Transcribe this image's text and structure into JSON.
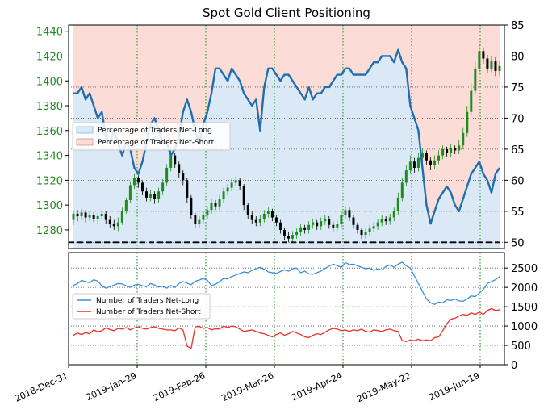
{
  "chart_data": [
    {
      "type": "line",
      "title": "Spot Gold Client Positioning",
      "x_ticks": [
        "2018-Dec-31",
        "2019-Jan-29",
        "2019-Feb-26",
        "2019-Mar-26",
        "2019-Apr-24",
        "2019-May-22",
        "2019-Jun-19"
      ],
      "y_left_ticks": [
        1280,
        1300,
        1320,
        1340,
        1360,
        1380,
        1400,
        1420,
        1440
      ],
      "y_right_ticks": [
        50,
        55,
        60,
        65,
        70,
        75,
        80,
        85
      ],
      "ylim_left": [
        1265,
        1445
      ],
      "ylim_right": [
        49,
        85
      ],
      "reference_line": 50,
      "grid": true,
      "legend_placement": "center-left",
      "legend": [
        "Percentage of Traders Net-Long",
        "Percentage of Traders Net-Short"
      ],
      "colors": {
        "net_long": "#1f6fb0",
        "long_fill": "#dbe9f7",
        "short_fill": "#fbdcd6",
        "candle_up": "#1f8b1f",
        "candle_down": "#000000",
        "grid_x": "#2ca02c",
        "tick_left": "#1f8b1f"
      },
      "series": [
        {
          "name": "Percentage of Traders Net-Long",
          "values": [
            74,
            74,
            75,
            73,
            74,
            72,
            70,
            71,
            67,
            66,
            68,
            66,
            64,
            66,
            65,
            62,
            61,
            63,
            66,
            69,
            70,
            68,
            66,
            66,
            64,
            65,
            67,
            71,
            73,
            71,
            68,
            66,
            69,
            71,
            74,
            78,
            78,
            77,
            76,
            78,
            77,
            76,
            74,
            73,
            72,
            73,
            68,
            75,
            78,
            78,
            77,
            76,
            77,
            77,
            76,
            75,
            74,
            73,
            75,
            73,
            74,
            74,
            75,
            75,
            76,
            77,
            77,
            78,
            78,
            77,
            77,
            77,
            77,
            78,
            79,
            79,
            80,
            80,
            80,
            79,
            81,
            79,
            78,
            72,
            70,
            68,
            62,
            56,
            53,
            55,
            57,
            58,
            59,
            58,
            56,
            55,
            57,
            59,
            61,
            62,
            63,
            61,
            60,
            58,
            61,
            62
          ]
        }
      ],
      "candles": [
        {
          "o": 1288,
          "c": 1293,
          "h": 1295,
          "l": 1284
        },
        {
          "o": 1293,
          "c": 1291,
          "h": 1296,
          "l": 1287
        },
        {
          "o": 1291,
          "c": 1294,
          "h": 1297,
          "l": 1288
        },
        {
          "o": 1294,
          "c": 1290,
          "h": 1296,
          "l": 1286
        },
        {
          "o": 1290,
          "c": 1292,
          "h": 1295,
          "l": 1287
        },
        {
          "o": 1292,
          "c": 1289,
          "h": 1294,
          "l": 1286
        },
        {
          "o": 1289,
          "c": 1291,
          "h": 1294,
          "l": 1285
        },
        {
          "o": 1291,
          "c": 1293,
          "h": 1296,
          "l": 1288
        },
        {
          "o": 1293,
          "c": 1288,
          "h": 1295,
          "l": 1285
        },
        {
          "o": 1288,
          "c": 1285,
          "h": 1291,
          "l": 1282
        },
        {
          "o": 1285,
          "c": 1283,
          "h": 1288,
          "l": 1280
        },
        {
          "o": 1283,
          "c": 1286,
          "h": 1290,
          "l": 1279
        },
        {
          "o": 1286,
          "c": 1295,
          "h": 1298,
          "l": 1284
        },
        {
          "o": 1295,
          "c": 1304,
          "h": 1306,
          "l": 1293
        },
        {
          "o": 1304,
          "c": 1316,
          "h": 1319,
          "l": 1302
        },
        {
          "o": 1316,
          "c": 1322,
          "h": 1325,
          "l": 1313
        },
        {
          "o": 1322,
          "c": 1318,
          "h": 1324,
          "l": 1314
        },
        {
          "o": 1318,
          "c": 1311,
          "h": 1320,
          "l": 1308
        },
        {
          "o": 1311,
          "c": 1306,
          "h": 1314,
          "l": 1303
        },
        {
          "o": 1306,
          "c": 1309,
          "h": 1312,
          "l": 1303
        },
        {
          "o": 1309,
          "c": 1305,
          "h": 1311,
          "l": 1301
        },
        {
          "o": 1305,
          "c": 1311,
          "h": 1314,
          "l": 1302
        },
        {
          "o": 1311,
          "c": 1318,
          "h": 1321,
          "l": 1308
        },
        {
          "o": 1318,
          "c": 1330,
          "h": 1333,
          "l": 1315
        },
        {
          "o": 1330,
          "c": 1340,
          "h": 1346,
          "l": 1327
        },
        {
          "o": 1340,
          "c": 1333,
          "h": 1342,
          "l": 1330
        },
        {
          "o": 1333,
          "c": 1326,
          "h": 1335,
          "l": 1322
        },
        {
          "o": 1326,
          "c": 1320,
          "h": 1328,
          "l": 1316
        },
        {
          "o": 1320,
          "c": 1306,
          "h": 1322,
          "l": 1302
        },
        {
          "o": 1306,
          "c": 1292,
          "h": 1308,
          "l": 1289
        },
        {
          "o": 1292,
          "c": 1285,
          "h": 1294,
          "l": 1282
        },
        {
          "o": 1285,
          "c": 1288,
          "h": 1291,
          "l": 1282
        },
        {
          "o": 1288,
          "c": 1292,
          "h": 1295,
          "l": 1285
        },
        {
          "o": 1292,
          "c": 1296,
          "h": 1299,
          "l": 1289
        },
        {
          "o": 1296,
          "c": 1302,
          "h": 1305,
          "l": 1293
        },
        {
          "o": 1302,
          "c": 1299,
          "h": 1304,
          "l": 1296
        },
        {
          "o": 1299,
          "c": 1305,
          "h": 1308,
          "l": 1296
        },
        {
          "o": 1305,
          "c": 1311,
          "h": 1314,
          "l": 1302
        },
        {
          "o": 1311,
          "c": 1314,
          "h": 1317,
          "l": 1308
        },
        {
          "o": 1314,
          "c": 1318,
          "h": 1321,
          "l": 1311
        },
        {
          "o": 1318,
          "c": 1320,
          "h": 1323,
          "l": 1315
        },
        {
          "o": 1320,
          "c": 1315,
          "h": 1322,
          "l": 1312
        },
        {
          "o": 1315,
          "c": 1300,
          "h": 1317,
          "l": 1296
        },
        {
          "o": 1300,
          "c": 1292,
          "h": 1302,
          "l": 1289
        },
        {
          "o": 1292,
          "c": 1288,
          "h": 1295,
          "l": 1285
        },
        {
          "o": 1288,
          "c": 1286,
          "h": 1291,
          "l": 1283
        },
        {
          "o": 1286,
          "c": 1289,
          "h": 1292,
          "l": 1283
        },
        {
          "o": 1289,
          "c": 1293,
          "h": 1296,
          "l": 1286
        },
        {
          "o": 1293,
          "c": 1295,
          "h": 1298,
          "l": 1290
        },
        {
          "o": 1295,
          "c": 1290,
          "h": 1297,
          "l": 1287
        },
        {
          "o": 1290,
          "c": 1286,
          "h": 1292,
          "l": 1283
        },
        {
          "o": 1286,
          "c": 1280,
          "h": 1288,
          "l": 1277
        },
        {
          "o": 1280,
          "c": 1275,
          "h": 1282,
          "l": 1272
        },
        {
          "o": 1275,
          "c": 1273,
          "h": 1278,
          "l": 1270
        },
        {
          "o": 1273,
          "c": 1276,
          "h": 1279,
          "l": 1270
        },
        {
          "o": 1276,
          "c": 1278,
          "h": 1281,
          "l": 1273
        },
        {
          "o": 1278,
          "c": 1282,
          "h": 1285,
          "l": 1275
        },
        {
          "o": 1282,
          "c": 1280,
          "h": 1284,
          "l": 1277
        },
        {
          "o": 1280,
          "c": 1284,
          "h": 1287,
          "l": 1277
        },
        {
          "o": 1284,
          "c": 1286,
          "h": 1289,
          "l": 1281
        },
        {
          "o": 1286,
          "c": 1283,
          "h": 1288,
          "l": 1280
        },
        {
          "o": 1283,
          "c": 1287,
          "h": 1290,
          "l": 1280
        },
        {
          "o": 1287,
          "c": 1289,
          "h": 1292,
          "l": 1284
        },
        {
          "o": 1289,
          "c": 1284,
          "h": 1291,
          "l": 1281
        },
        {
          "o": 1284,
          "c": 1282,
          "h": 1287,
          "l": 1279
        },
        {
          "o": 1282,
          "c": 1285,
          "h": 1288,
          "l": 1279
        },
        {
          "o": 1285,
          "c": 1292,
          "h": 1295,
          "l": 1282
        },
        {
          "o": 1292,
          "c": 1296,
          "h": 1299,
          "l": 1289
        },
        {
          "o": 1296,
          "c": 1290,
          "h": 1298,
          "l": 1287
        },
        {
          "o": 1290,
          "c": 1284,
          "h": 1292,
          "l": 1281
        },
        {
          "o": 1284,
          "c": 1280,
          "h": 1286,
          "l": 1277
        },
        {
          "o": 1280,
          "c": 1276,
          "h": 1282,
          "l": 1273
        },
        {
          "o": 1276,
          "c": 1278,
          "h": 1281,
          "l": 1273
        },
        {
          "o": 1278,
          "c": 1281,
          "h": 1284,
          "l": 1275
        },
        {
          "o": 1281,
          "c": 1283,
          "h": 1286,
          "l": 1278
        },
        {
          "o": 1283,
          "c": 1286,
          "h": 1289,
          "l": 1280
        },
        {
          "o": 1286,
          "c": 1289,
          "h": 1292,
          "l": 1283
        },
        {
          "o": 1289,
          "c": 1287,
          "h": 1291,
          "l": 1284
        },
        {
          "o": 1287,
          "c": 1290,
          "h": 1293,
          "l": 1284
        },
        {
          "o": 1290,
          "c": 1295,
          "h": 1298,
          "l": 1287
        },
        {
          "o": 1295,
          "c": 1306,
          "h": 1310,
          "l": 1292
        },
        {
          "o": 1306,
          "c": 1318,
          "h": 1322,
          "l": 1303
        },
        {
          "o": 1318,
          "c": 1328,
          "h": 1332,
          "l": 1315
        },
        {
          "o": 1328,
          "c": 1335,
          "h": 1340,
          "l": 1325
        },
        {
          "o": 1335,
          "c": 1330,
          "h": 1338,
          "l": 1326
        },
        {
          "o": 1330,
          "c": 1338,
          "h": 1342,
          "l": 1327
        },
        {
          "o": 1338,
          "c": 1342,
          "h": 1346,
          "l": 1334
        },
        {
          "o": 1342,
          "c": 1336,
          "h": 1344,
          "l": 1332
        },
        {
          "o": 1336,
          "c": 1332,
          "h": 1339,
          "l": 1328
        },
        {
          "o": 1332,
          "c": 1336,
          "h": 1340,
          "l": 1329
        },
        {
          "o": 1336,
          "c": 1340,
          "h": 1344,
          "l": 1333
        },
        {
          "o": 1340,
          "c": 1345,
          "h": 1348,
          "l": 1337
        },
        {
          "o": 1345,
          "c": 1342,
          "h": 1347,
          "l": 1339
        },
        {
          "o": 1342,
          "c": 1346,
          "h": 1349,
          "l": 1339
        },
        {
          "o": 1346,
          "c": 1344,
          "h": 1348,
          "l": 1341
        },
        {
          "o": 1344,
          "c": 1348,
          "h": 1352,
          "l": 1341
        },
        {
          "o": 1348,
          "c": 1358,
          "h": 1362,
          "l": 1345
        },
        {
          "o": 1358,
          "c": 1375,
          "h": 1380,
          "l": 1355
        },
        {
          "o": 1375,
          "c": 1392,
          "h": 1398,
          "l": 1372
        },
        {
          "o": 1392,
          "c": 1410,
          "h": 1416,
          "l": 1389
        },
        {
          "o": 1410,
          "c": 1424,
          "h": 1430,
          "l": 1407
        },
        {
          "o": 1424,
          "c": 1418,
          "h": 1427,
          "l": 1414
        },
        {
          "o": 1418,
          "c": 1410,
          "h": 1421,
          "l": 1406
        },
        {
          "o": 1410,
          "c": 1416,
          "h": 1420,
          "l": 1407
        },
        {
          "o": 1416,
          "c": 1408,
          "h": 1419,
          "l": 1404
        },
        {
          "o": 1408,
          "c": 1412,
          "h": 1416,
          "l": 1404
        }
      ]
    },
    {
      "type": "line",
      "x_ticks": [
        "2018-Dec-31",
        "2019-Jan-29",
        "2019-Feb-26",
        "2019-Mar-26",
        "2019-Apr-24",
        "2019-May-22",
        "2019-Jun-19"
      ],
      "y_right_ticks": [
        0,
        500,
        1000,
        1500,
        2000,
        2500
      ],
      "ylim": [
        0,
        2900
      ],
      "grid": true,
      "legend_placement": "center-left",
      "series": [
        {
          "name": "Number of Traders Net-Long",
          "color": "#3b8fd9",
          "values": [
            2050,
            2100,
            2180,
            2150,
            2120,
            2200,
            2160,
            2040,
            1980,
            2020,
            2060,
            2100,
            2090,
            2040,
            2000,
            2060,
            2080,
            2040,
            2020,
            2100,
            2060,
            2010,
            2030,
            1980,
            2050,
            2000,
            2100,
            2150,
            2110,
            2070,
            2160,
            2190,
            2230,
            2180,
            2050,
            2080,
            2150,
            2230,
            2220,
            2280,
            2320,
            2360,
            2400,
            2380,
            2440,
            2480,
            2520,
            2470,
            2400,
            2380,
            2360,
            2410,
            2450,
            2420,
            2480,
            2500,
            2380,
            2420,
            2350,
            2340,
            2380,
            2420,
            2490,
            2550,
            2600,
            2560,
            2520,
            2640,
            2590,
            2600,
            2560,
            2520,
            2480,
            2500,
            2440,
            2480,
            2450,
            2540,
            2580,
            2520,
            2600,
            2650,
            2560,
            2500,
            2300,
            2100,
            1900,
            1700,
            1600,
            1560,
            1620,
            1600,
            1680,
            1660,
            1700,
            1650,
            1640,
            1700,
            1780,
            1760,
            1850,
            1950,
            2100,
            2150,
            2200,
            2280
          ]
        },
        {
          "name": "Number of Traders Net-Short",
          "color": "#e8312a",
          "values": [
            760,
            820,
            780,
            830,
            800,
            900,
            850,
            880,
            950,
            910,
            880,
            940,
            920,
            960,
            900,
            950,
            980,
            940,
            920,
            960,
            980,
            940,
            920,
            900,
            900,
            880,
            950,
            900,
            480,
            420,
            980,
            990,
            940,
            960,
            900,
            930,
            920,
            1000,
            960,
            1000,
            980,
            920,
            860,
            880,
            900,
            860,
            820,
            800,
            760,
            720,
            780,
            820,
            760,
            800,
            860,
            820,
            780,
            720,
            700,
            760,
            800,
            780,
            840,
            900,
            940,
            920,
            880,
            900,
            860,
            900,
            880,
            920,
            860,
            840,
            900,
            880,
            860,
            900,
            920,
            880,
            860,
            620,
            600,
            640,
            620,
            660,
            620,
            640,
            620,
            700,
            720,
            880,
            1060,
            1180,
            1200,
            1260,
            1300,
            1280,
            1340,
            1300,
            1360,
            1300,
            1400,
            1450,
            1400,
            1420
          ]
        }
      ]
    }
  ]
}
